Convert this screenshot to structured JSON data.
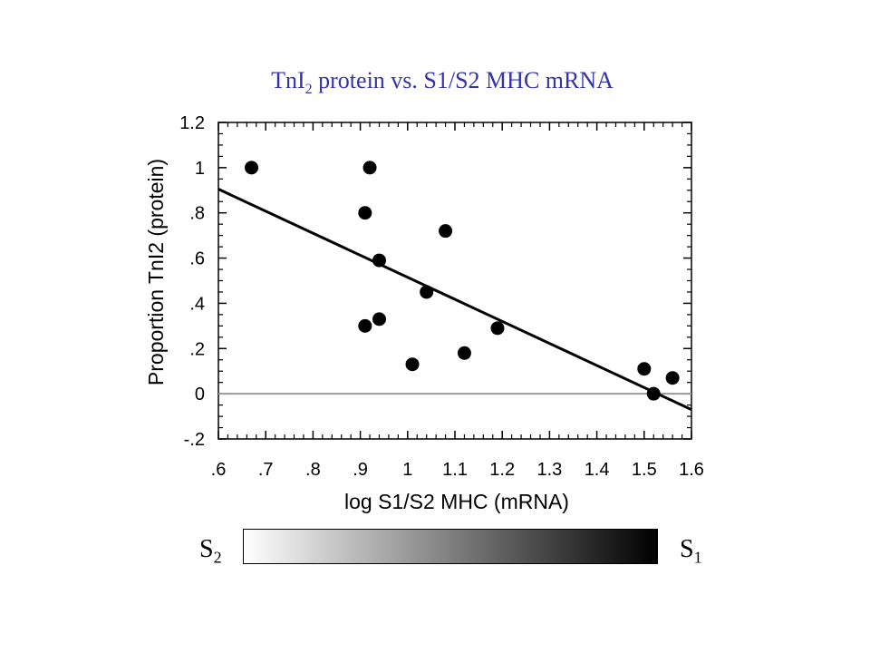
{
  "title": {
    "main": "TnI",
    "sub": "2",
    "rest": " protein vs. S1/S2 MHC mRNA",
    "color": "#3333aa"
  },
  "chart_data": {
    "type": "scatter",
    "xlabel": "log S1/S2 MHC (mRNA)",
    "ylabel": "Proportion TnI2 (protein)",
    "xlim": [
      0.6,
      1.6
    ],
    "ylim": [
      -0.2,
      1.2
    ],
    "xticks": [
      ".6",
      ".7",
      ".8",
      ".9",
      "1",
      "1.1",
      "1.2",
      "1.3",
      "1.4",
      "1.5",
      "1.6"
    ],
    "yticks": [
      "-.2",
      "0",
      ".2",
      ".4",
      ".6",
      ".8",
      "1",
      "1.2"
    ],
    "points": [
      {
        "x": 0.67,
        "y": 1.0
      },
      {
        "x": 0.92,
        "y": 1.0
      },
      {
        "x": 0.91,
        "y": 0.8
      },
      {
        "x": 1.08,
        "y": 0.72
      },
      {
        "x": 0.94,
        "y": 0.59
      },
      {
        "x": 1.04,
        "y": 0.45
      },
      {
        "x": 0.94,
        "y": 0.33
      },
      {
        "x": 0.91,
        "y": 0.3
      },
      {
        "x": 1.19,
        "y": 0.29
      },
      {
        "x": 1.12,
        "y": 0.18
      },
      {
        "x": 1.01,
        "y": 0.13
      },
      {
        "x": 1.5,
        "y": 0.11
      },
      {
        "x": 1.56,
        "y": 0.07
      },
      {
        "x": 1.52,
        "y": 0.0
      }
    ],
    "fit_line": {
      "x": [
        0.6,
        1.6
      ],
      "y": [
        0.905,
        -0.07
      ]
    },
    "zero_line": true,
    "grid": false
  },
  "gradient": {
    "left_label": "S",
    "left_sub": "2",
    "right_label": "S",
    "right_sub": "1",
    "from_color": "#ffffff",
    "to_color": "#000000"
  }
}
